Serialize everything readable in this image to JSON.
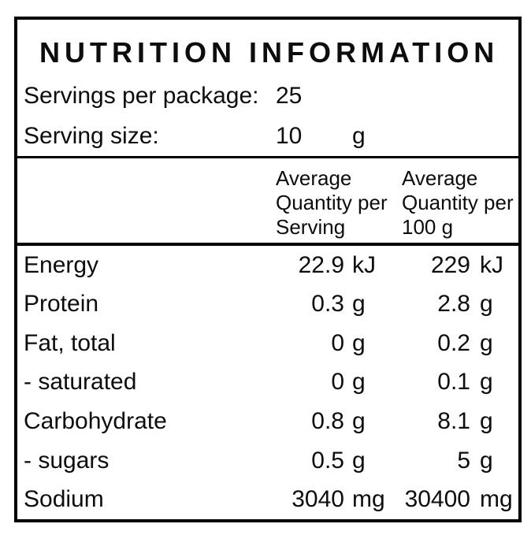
{
  "title": "NUTRITION INFORMATION",
  "info": {
    "servings_label": "Servings per package:",
    "servings_value": "25",
    "serving_size_label": "Serving size:",
    "serving_size_value": "10",
    "serving_size_unit": "g"
  },
  "columns": {
    "per_serving": {
      "line1": "Average",
      "line2": "Quantity per",
      "line3": "Serving"
    },
    "per_100g": {
      "line1": "Average",
      "line2": "Quantity per",
      "line3": "100 g"
    }
  },
  "rows": [
    {
      "name": "Energy",
      "serving_qty": "22.9",
      "serving_unit": "kJ",
      "per100_qty": "229",
      "per100_unit": "kJ"
    },
    {
      "name": "Protein",
      "serving_qty": "0.3",
      "serving_unit": "g",
      "per100_qty": "2.8",
      "per100_unit": "g"
    },
    {
      "name": "Fat, total",
      "serving_qty": "0",
      "serving_unit": "g",
      "per100_qty": "0.2",
      "per100_unit": "g"
    },
    {
      "name": "- saturated",
      "serving_qty": "0",
      "serving_unit": "g",
      "per100_qty": "0.1",
      "per100_unit": "g"
    },
    {
      "name": "Carbohydrate",
      "serving_qty": "0.8",
      "serving_unit": "g",
      "per100_qty": "8.1",
      "per100_unit": "g"
    },
    {
      "name": "- sugars",
      "serving_qty": "0.5",
      "serving_unit": "g",
      "per100_qty": "5",
      "per100_unit": "g"
    },
    {
      "name": "Sodium",
      "serving_qty": "3040",
      "serving_unit": "mg",
      "per100_qty": "30400",
      "per100_unit": "mg"
    }
  ],
  "colors": {
    "border": "#000000",
    "background": "#ffffff",
    "text": "#0d0d0d"
  }
}
